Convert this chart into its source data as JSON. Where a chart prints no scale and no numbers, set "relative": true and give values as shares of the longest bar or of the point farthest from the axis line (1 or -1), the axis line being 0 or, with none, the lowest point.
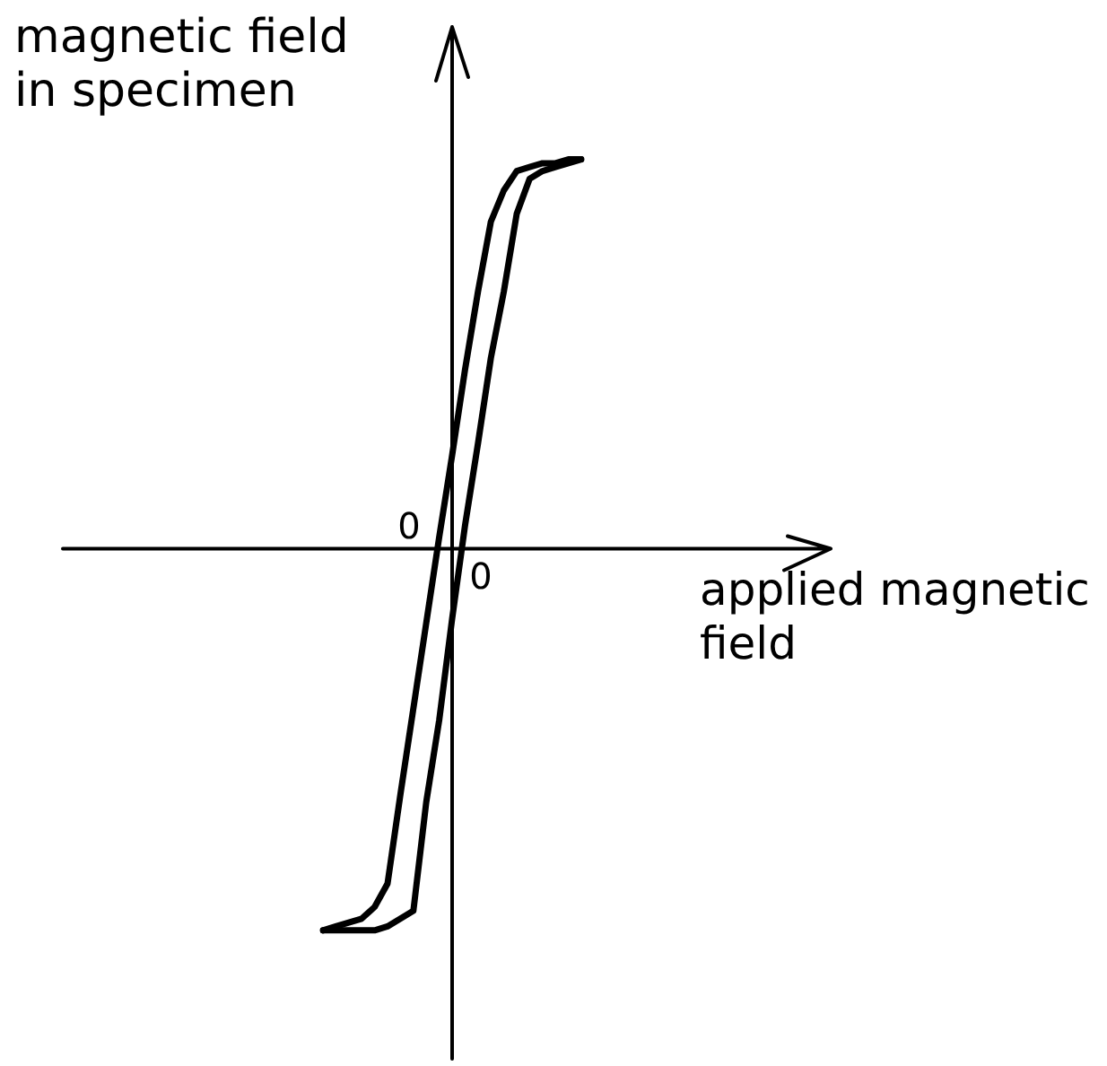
{
  "chart_data": {
    "type": "line",
    "relative": true,
    "xlabel": "applied magnetic field",
    "ylabel": "magnetic field in specimen",
    "annotations": [
      "0",
      "0"
    ],
    "categories": [
      null,
      null,
      null,
      null,
      null,
      null,
      null,
      null,
      null,
      null,
      null,
      null,
      null,
      null,
      null,
      null,
      null,
      null,
      null,
      null,
      null
    ],
    "series": [
      {
        "color": "#000000",
        "values": [
          -0.98,
          -0.97,
          -0.96,
          -0.95,
          -0.92,
          -0.86,
          -0.63,
          -0.41,
          -0.19,
          0.03,
          0.24,
          0.46,
          0.66,
          0.84,
          0.92,
          0.97,
          0.98,
          0.99,
          0.99,
          1,
          1
        ]
      },
      {
        "color": "#000000",
        "values": [
          -0.98,
          -0.98,
          -0.98,
          -0.98,
          -0.98,
          -0.97,
          -0.95,
          -0.93,
          -0.65,
          -0.44,
          -0.18,
          0.06,
          0.27,
          0.49,
          0.66,
          0.86,
          0.95,
          0.97,
          0.98,
          0.99,
          1
        ]
      }
    ]
  }
}
